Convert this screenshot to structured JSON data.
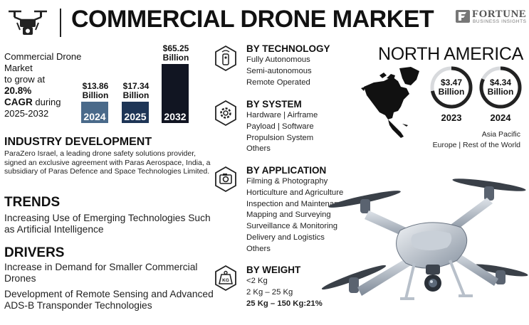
{
  "header": {
    "title": "COMMERCIAL DRONE MARKET",
    "brand_name": "FORTUNE",
    "brand_sub": "BUSINESS INSIGHTS"
  },
  "intro": {
    "line1": "Commercial Drone",
    "line2": "Market",
    "line3": "to grow at",
    "cagr_value": "20.8%",
    "cagr_label": "CAGR",
    "cagr_period": "during",
    "period": "2025-2032"
  },
  "market_bars": [
    {
      "value": "$13.86",
      "unit": "Billion",
      "year": "2024",
      "amount": 13.86,
      "color": "#4a6a8a"
    },
    {
      "value": "$17.34",
      "unit": "Billion",
      "year": "2025",
      "amount": 17.34,
      "color": "#1e3556"
    },
    {
      "value": "$65.25",
      "unit": "Billion",
      "year": "2032",
      "amount": 65.25,
      "color": "#111522"
    }
  ],
  "industry": {
    "heading": "INDUSTRY DEVELOPMENT",
    "text": "ParaZero Israel, a leading drone safety solutions provider, signed an exclusive agreement with Paras Aerospace, India, a subsidiary of Paras Defence and Space Technologies Limited."
  },
  "trends": {
    "heading": "TRENDS",
    "text": "Increasing Use of Emerging Technologies Such as Artificial Intelligence"
  },
  "drivers": {
    "heading": "DRIVERS",
    "item1": "Increase in Demand for Smaller Commercial Drones",
    "item2": "Development of Remote Sensing and Advanced ADS-B Transponder Technologies"
  },
  "by_technology": {
    "heading": "BY TECHNOLOGY",
    "items": [
      "Fully Autonomous",
      "Semi-autonomous",
      "Remote Operated"
    ]
  },
  "by_system": {
    "heading": "BY SYSTEM",
    "items": [
      "Hardware  |  Airframe",
      "Payload  |  Software",
      "Propulsion System",
      "Others"
    ]
  },
  "by_application": {
    "heading": "BY APPLICATION",
    "items": [
      "Filming & Photography",
      "Horticulture and Agriculture",
      "Inspection and Maintenance",
      "Mapping and Surveying",
      "Surveillance & Monitoring",
      "Delivery and Logistics",
      "Others"
    ]
  },
  "by_weight": {
    "heading": "BY WEIGHT",
    "icon_text": "KG",
    "items": [
      "<2 Kg",
      "2 Kg – 25 Kg",
      "25 Kg – 150 Kg:21%"
    ]
  },
  "north_america": {
    "heading": "NORTH AMERICA",
    "rings": [
      {
        "value": "$3.47",
        "unit": "Billion",
        "year": "2023",
        "fill": 0.72
      },
      {
        "value": "$4.34",
        "unit": "Billion",
        "year": "2024",
        "fill": 0.82
      }
    ],
    "region_line1": "Asia Pacific",
    "region_line2": "Europe  |  Rest of the World"
  }
}
